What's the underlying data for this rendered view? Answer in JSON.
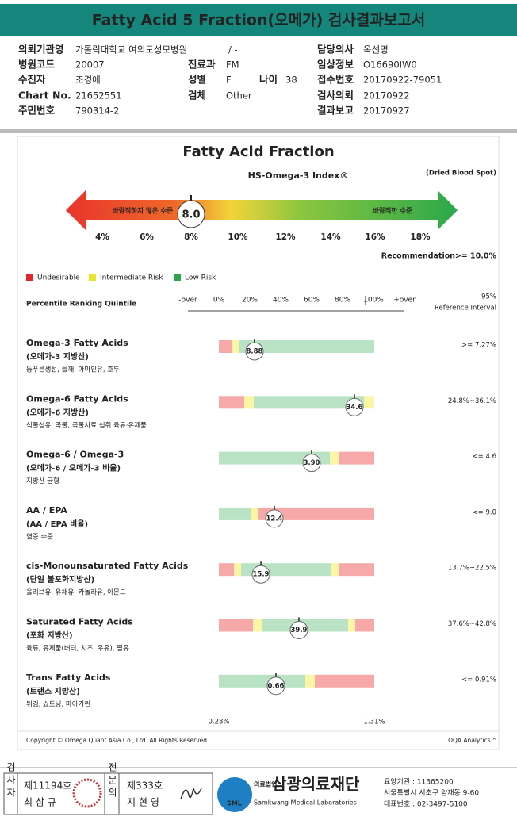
{
  "header": {
    "title": "Fatty Acid 5 Fraction(오메가) 검사결과보고서"
  },
  "info": [
    {
      "label": "의뢰기관명",
      "value": "가톨릭대학교 여의도성모병원"
    },
    {
      "label": "담당의사",
      "value": "옥선명"
    },
    {
      "label": "병원코드",
      "value": "20007"
    },
    {
      "label": "진료과",
      "value": "FM"
    },
    {
      "label": "임상정보",
      "value": "O16690IW0"
    },
    {
      "label": "수진자",
      "value": "조경애"
    },
    {
      "label": "성별",
      "value": "F"
    },
    {
      "label": "나이",
      "value": "38"
    },
    {
      "label": "접수번호",
      "value": "20170922-79051"
    },
    {
      "label": "Chart No.",
      "value": "21652551"
    },
    {
      "label": "검체",
      "value": "Other"
    },
    {
      "label": "검사의뢰",
      "value": "20170922"
    },
    {
      "label": "주민번호",
      "value": "790314-2"
    },
    {
      "label": "결과보고",
      "value": "20170927"
    }
  ],
  "ward": "/ -",
  "index": {
    "title": "Fatty Acid Fraction",
    "subtitle": "HS-Omega-3 Index®",
    "sample": "(Dried Blood Spot)",
    "left_label": "바람직하지 않은 수준",
    "right_label": "바람직한 수준",
    "value": "8.0",
    "ticks": [
      "4%",
      "6%",
      "8%",
      "10%",
      "12%",
      "14%",
      "16%",
      "18%"
    ],
    "recommendation_label": "Recommendation",
    "recommendation": ">= 10.0%"
  },
  "legend": [
    "Undesirable",
    "Intermediate Risk",
    "Low Risk"
  ],
  "scale": {
    "title": "Percentile Ranking Quintile",
    "ticks": [
      "-over",
      "0%",
      "20%",
      "40%",
      "60%",
      "80%",
      "100%",
      "+over"
    ],
    "ref_top": "95%",
    "ref_bottom": "Reference Interval"
  },
  "rows": [
    {
      "name": "Omega-3 Fatty Acids",
      "korean": "(오메가-3 지방산)",
      "sources": "등푸른생선, 들깨, 아마인유, 호두",
      "value": "8.88",
      "reference": ">= 7.27%"
    },
    {
      "name": "Omega-6 Fatty Acids",
      "korean": "(오메가-6 지방산)",
      "sources": "식물성유, 곡물, 곡물사료 섭취 육류·유제품",
      "value": "34.6",
      "reference": "24.8%~36.1%"
    },
    {
      "name": "Omega-6 / Omega-3",
      "korean": "(오메가-6 / 오메가-3 비율)",
      "sources": "지방산 균형",
      "value": "3.90",
      "reference": "<= 4.6"
    },
    {
      "name": "AA / EPA",
      "korean": "(AA / EPA 비율)",
      "sources": "염증 수준",
      "value": "12.4",
      "reference": "<= 9.0"
    },
    {
      "name": "cis-Monounsaturated Fatty Acids",
      "korean": "(단일 불포화지방산)",
      "sources": "올리브유, 유채유, 카놀라유, 아몬드",
      "value": "15.9",
      "reference": "13.7%~22.5%"
    },
    {
      "name": "Saturated Fatty Acids",
      "korean": "(포화 지방산)",
      "sources": "육류, 유제품(버터, 치즈, 우유), 팜유",
      "value": "39.9",
      "reference": "37.6%~42.8%"
    },
    {
      "name": "Trans Fatty Acids",
      "korean": "(트랜스 지방산)",
      "sources": "튀김, 쇼트닝, 마아가린",
      "value": "0.66",
      "reference": "<= 0.91%",
      "scale_min": "0.28%",
      "scale_max": "1.31%"
    }
  ],
  "footer": {
    "copyright": "Copyright © Omega Quant Asia Co., Ltd.  All Rights Reserved.",
    "brand": "OQA Analytics™"
  },
  "signature": {
    "examiner_title": "검사자",
    "examiner_no": "제11194호",
    "examiner_name": "최 삼 규",
    "specialist_title": "전문의",
    "specialist_no": "제333호",
    "specialist_name": "지 현 영"
  },
  "lab": {
    "logo": "SML",
    "corp": "의료법인",
    "name": "삼광의료재단",
    "name_en": "Samkwang Medical Laboratories",
    "code": "요양기관 : 11365200",
    "address": "서울특별시 서초구 양재동 9-60",
    "phone": "대표번호 : 02-3497-5100"
  }
}
